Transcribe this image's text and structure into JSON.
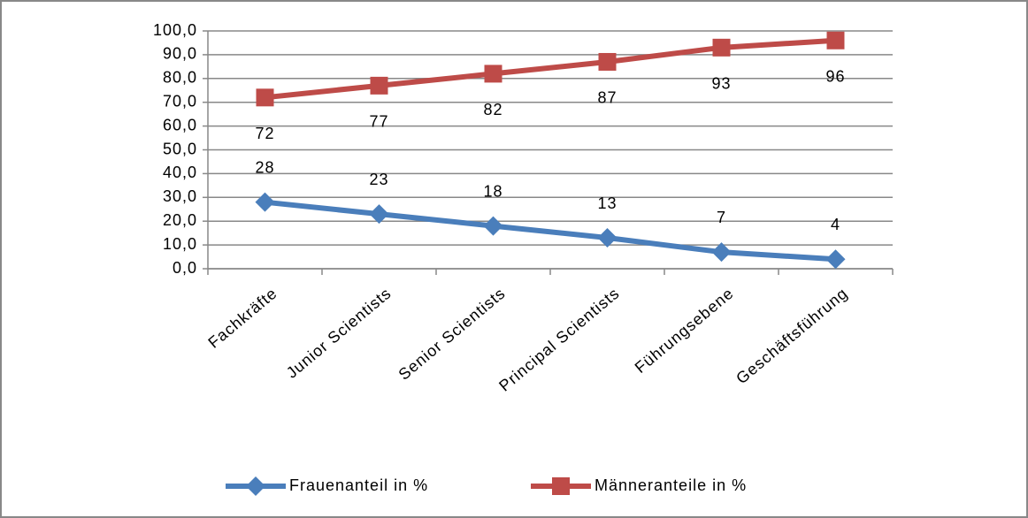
{
  "chart_data": {
    "type": "line",
    "categories": [
      "Fachkräfte",
      "Junior Scientists",
      "Senior Scientists",
      "Principal Scientists",
      "Führungsebene",
      "Geschäftsführung"
    ],
    "series": [
      {
        "name": "Frauenanteil in %",
        "color": "#4a7ebb",
        "marker": "diamond",
        "label_position": "above",
        "values": [
          28,
          23,
          18,
          13,
          7,
          4
        ]
      },
      {
        "name": "Männeranteile in %",
        "color": "#be4b48",
        "marker": "square",
        "label_position": "below",
        "values": [
          72,
          77,
          82,
          87,
          93,
          96
        ]
      }
    ],
    "ylim": [
      0,
      100
    ],
    "yticks": [
      {
        "value": 0,
        "label": "0,0"
      },
      {
        "value": 10,
        "label": "10,0"
      },
      {
        "value": 20,
        "label": "20,0"
      },
      {
        "value": 30,
        "label": "30,0"
      },
      {
        "value": 40,
        "label": "40,0"
      },
      {
        "value": 50,
        "label": "50,0"
      },
      {
        "value": 60,
        "label": "60,0"
      },
      {
        "value": 70,
        "label": "70,0"
      },
      {
        "value": 80,
        "label": "80,0"
      },
      {
        "value": 90,
        "label": "90,0"
      },
      {
        "value": 100,
        "label": "100,0"
      }
    ],
    "grid": true,
    "legend": "bottom"
  }
}
